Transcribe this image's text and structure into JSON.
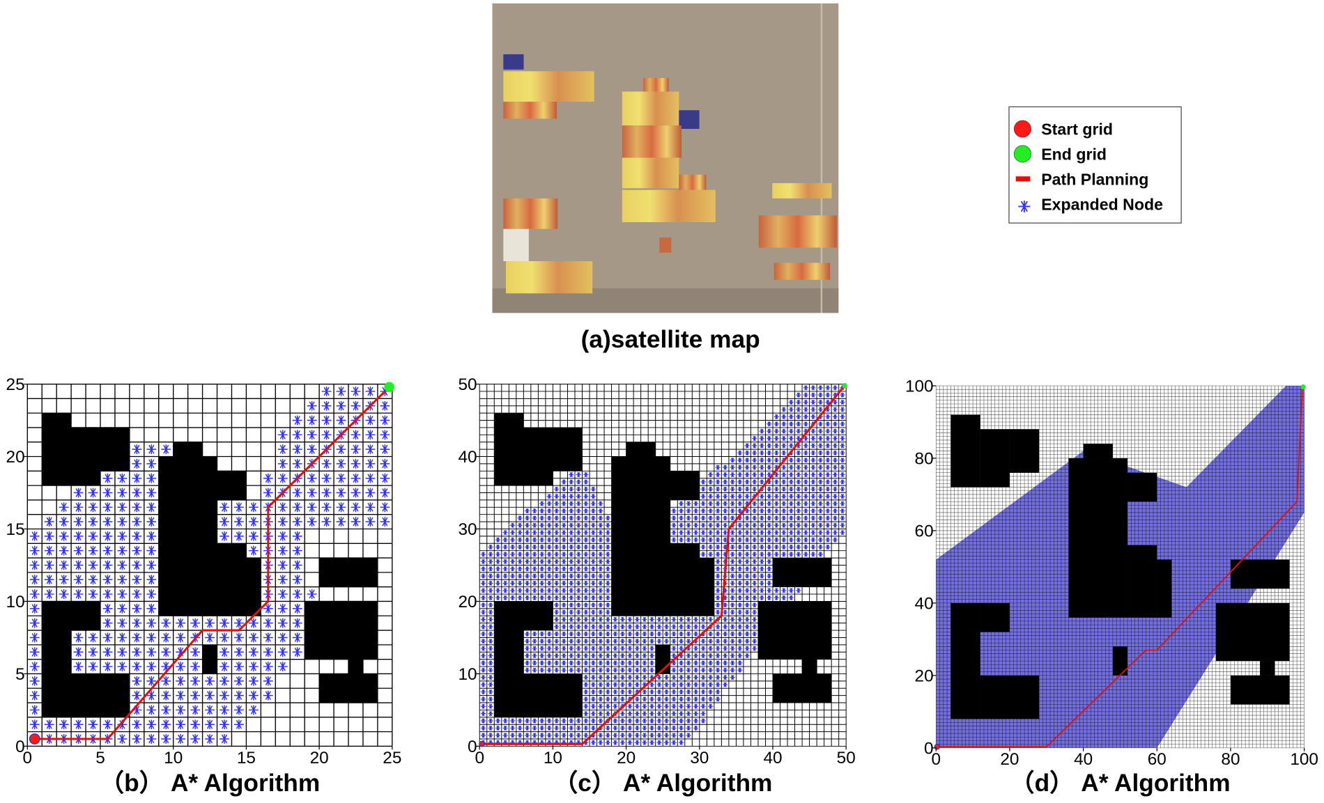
{
  "satellite": {
    "caption": "(a)satellite map"
  },
  "legend": {
    "items": [
      {
        "label": "Start grid",
        "color": "#ff1a1a",
        "marker": "circle"
      },
      {
        "label": "End grid",
        "color": "#22ee22",
        "marker": "circle"
      },
      {
        "label": "Path Planning",
        "color": "#e01010",
        "marker": "line"
      },
      {
        "label": "Expanded Node",
        "color": "#3333ff",
        "marker": "asterisk"
      }
    ]
  },
  "panels": [
    {
      "caption": "（b） A* Algorithm",
      "grid_size": 25,
      "xlim": [
        0,
        25
      ],
      "ylim": [
        0,
        25
      ],
      "xticks": [
        0,
        5,
        10,
        15,
        20,
        25
      ],
      "yticks": [
        0,
        5,
        10,
        15,
        20,
        25
      ],
      "start": [
        0.5,
        0.5
      ],
      "end": [
        24.8,
        24.8
      ],
      "obstacles": [
        [
          1,
          18,
          3,
          23
        ],
        [
          3,
          18,
          5,
          22
        ],
        [
          5,
          19,
          7,
          22
        ],
        [
          9,
          9,
          13,
          20
        ],
        [
          10,
          20,
          12,
          21
        ],
        [
          13,
          17,
          15,
          19
        ],
        [
          13,
          9,
          15,
          14
        ],
        [
          15,
          9,
          16,
          13
        ],
        [
          12,
          5,
          13,
          7
        ],
        [
          1,
          2,
          3,
          10
        ],
        [
          3,
          8,
          5,
          10
        ],
        [
          3,
          2,
          7,
          5
        ],
        [
          20,
          11,
          24,
          13
        ],
        [
          19,
          6,
          24,
          10
        ],
        [
          22,
          5,
          23,
          6
        ],
        [
          20,
          3,
          24,
          5
        ]
      ],
      "path": {
        "x": [
          0.5,
          5.5,
          12,
          14.5,
          16.5,
          16.5,
          24.5
        ],
        "y": [
          0.5,
          0.5,
          8,
          8,
          10,
          16.5,
          24.5
        ]
      },
      "expanded_region": [
        [
          0,
          0
        ],
        [
          14,
          0
        ],
        [
          20,
          8
        ],
        [
          19,
          15
        ],
        [
          25,
          15
        ],
        [
          25,
          26
        ],
        [
          22,
          26
        ],
        [
          17,
          21
        ],
        [
          16,
          17
        ],
        [
          10,
          21
        ],
        [
          7,
          21
        ],
        [
          0,
          14
        ]
      ]
    },
    {
      "caption": "（c） A* Algorithm",
      "grid_size": 50,
      "xlim": [
        0,
        50
      ],
      "ylim": [
        0,
        50
      ],
      "xticks": [
        0,
        10,
        20,
        30,
        40,
        50
      ],
      "yticks": [
        0,
        10,
        20,
        30,
        40,
        50
      ],
      "start": [
        0.3,
        0.3
      ],
      "end": [
        49.8,
        49.8
      ],
      "obstacles": [
        [
          2,
          36,
          6,
          46
        ],
        [
          6,
          36,
          10,
          44
        ],
        [
          10,
          38,
          14,
          44
        ],
        [
          18,
          18,
          26,
          40
        ],
        [
          20,
          40,
          24,
          42
        ],
        [
          26,
          34,
          30,
          38
        ],
        [
          26,
          18,
          30,
          28
        ],
        [
          30,
          18,
          32,
          26
        ],
        [
          24,
          10,
          26,
          14
        ],
        [
          2,
          4,
          6,
          20
        ],
        [
          6,
          16,
          10,
          20
        ],
        [
          6,
          4,
          14,
          10
        ],
        [
          40,
          22,
          48,
          26
        ],
        [
          38,
          12,
          48,
          20
        ],
        [
          44,
          10,
          46,
          12
        ],
        [
          40,
          6,
          48,
          10
        ]
      ],
      "path": {
        "x": [
          0.3,
          14,
          33,
          34,
          49.8
        ],
        "y": [
          0.3,
          0.3,
          18,
          30,
          49.8
        ]
      },
      "expanded_region": [
        [
          0,
          0
        ],
        [
          28,
          0
        ],
        [
          50,
          30
        ],
        [
          50,
          51
        ],
        [
          46,
          51
        ],
        [
          20,
          27
        ],
        [
          14,
          39
        ],
        [
          0,
          27
        ]
      ]
    },
    {
      "caption": "（d） A* Algorithm",
      "grid_size": 100,
      "xlim": [
        0,
        100
      ],
      "ylim": [
        0,
        100
      ],
      "xticks": [
        0,
        20,
        40,
        60,
        80,
        100
      ],
      "yticks": [
        0,
        20,
        40,
        60,
        80,
        100
      ],
      "start": [
        0.3,
        0.3
      ],
      "end": [
        99.7,
        99.7
      ],
      "obstacles": [
        [
          4,
          72,
          12,
          92
        ],
        [
          12,
          72,
          20,
          88
        ],
        [
          20,
          76,
          28,
          88
        ],
        [
          36,
          36,
          52,
          80
        ],
        [
          40,
          80,
          48,
          84
        ],
        [
          52,
          68,
          60,
          76
        ],
        [
          52,
          36,
          60,
          56
        ],
        [
          60,
          36,
          64,
          52
        ],
        [
          48,
          20,
          52,
          28
        ],
        [
          4,
          8,
          12,
          40
        ],
        [
          12,
          32,
          20,
          40
        ],
        [
          12,
          8,
          28,
          20
        ],
        [
          80,
          44,
          96,
          52
        ],
        [
          76,
          24,
          96,
          40
        ],
        [
          88,
          20,
          92,
          24
        ],
        [
          80,
          12,
          96,
          20
        ]
      ],
      "path": {
        "x": [
          0.3,
          30,
          57,
          60,
          98,
          99.5
        ],
        "y": [
          0.3,
          0.3,
          27,
          27,
          68,
          99.5
        ]
      },
      "expanded_region": [
        [
          0,
          0
        ],
        [
          60,
          0
        ],
        [
          100,
          65
        ],
        [
          100,
          100
        ],
        [
          95,
          100
        ],
        [
          68,
          72
        ],
        [
          40,
          82
        ],
        [
          0,
          52
        ]
      ]
    }
  ]
}
